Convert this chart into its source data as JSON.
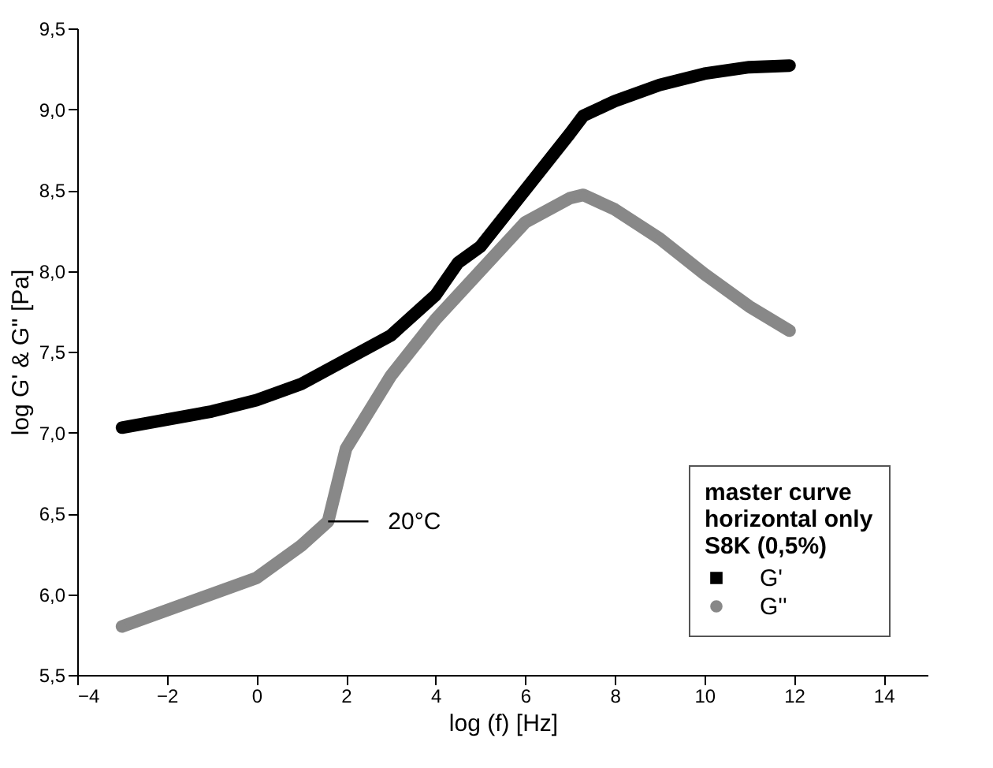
{
  "chart_data": {
    "type": "line",
    "xlabel": "log (f) [Hz]",
    "ylabel": "log G' & G'' [Pa]",
    "legend_title": "master curve\nhorizontal only\nS8K (0,5%)",
    "xlim": [
      -4,
      15
    ],
    "xticks": [
      -4,
      -2,
      0,
      2,
      4,
      6,
      8,
      10,
      12,
      14
    ],
    "ylim": [
      5.5,
      9.5
    ],
    "yticks": [
      {
        "value": 5.5,
        "label": "5,5"
      },
      {
        "value": 6.0,
        "label": "6,0"
      },
      {
        "value": 6.5,
        "label": "6,5"
      },
      {
        "value": 7.0,
        "label": "7,0"
      },
      {
        "value": 7.5,
        "label": "7,5"
      },
      {
        "value": 8.0,
        "label": "8,0"
      },
      {
        "value": 8.5,
        "label": "8,5"
      },
      {
        "value": 9.0,
        "label": "9,0"
      },
      {
        "value": 9.5,
        "label": "9,5"
      }
    ],
    "grid": false,
    "legend": "bottom right",
    "series": [
      {
        "name": "G'",
        "color": "#000000",
        "marker": "square",
        "x": [
          -3,
          -2,
          -1,
          0,
          1,
          2,
          3,
          4,
          4.5,
          5,
          6,
          7,
          7.3,
          8,
          9,
          10,
          11,
          11.9
        ],
        "values": [
          7.03,
          7.08,
          7.13,
          7.2,
          7.3,
          7.45,
          7.6,
          7.85,
          8.05,
          8.15,
          8.5,
          8.85,
          8.96,
          9.05,
          9.15,
          9.22,
          9.26,
          9.27
        ]
      },
      {
        "name": "G''",
        "color": "#888888",
        "marker": "circle",
        "x": [
          -3,
          -2,
          -1,
          0,
          1,
          1.6,
          2,
          3,
          4,
          5,
          6,
          7,
          7.3,
          8,
          9,
          10,
          11,
          11.9
        ],
        "values": [
          5.8,
          5.9,
          6.0,
          6.1,
          6.3,
          6.45,
          6.9,
          7.35,
          7.7,
          8.0,
          8.3,
          8.45,
          8.47,
          8.38,
          8.2,
          7.98,
          7.78,
          7.63
        ]
      }
    ],
    "annotations": [
      {
        "text": "20°C",
        "x": 1.6,
        "y": 6.45
      }
    ]
  }
}
